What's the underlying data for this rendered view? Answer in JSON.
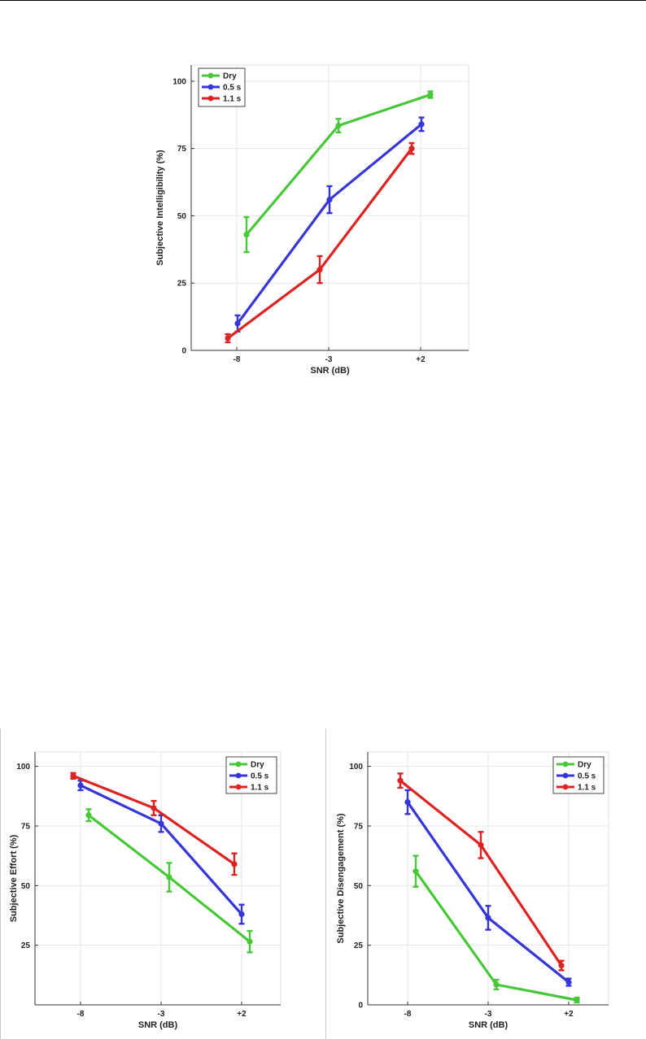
{
  "figure": {
    "series_colors": {
      "Dry": "#48c738",
      "0.5 s": "#3535d8",
      "1.1 s": "#dd2222"
    }
  },
  "chart_data": [
    {
      "type": "line",
      "xlabel": "SNR (dB)",
      "ylabel": "Subjective Intelligibility (%)",
      "categories": [
        "-8",
        "-3",
        "+2"
      ],
      "yticks": [
        "0",
        "25",
        "50",
        "75",
        "100"
      ],
      "ylim": [
        0,
        106
      ],
      "grid": true,
      "legend_position": "top-left",
      "series": [
        {
          "name": "Dry",
          "color": "#48c738",
          "values": [
            43,
            83.5,
            95
          ],
          "errors": [
            6.5,
            2.5,
            1.2
          ]
        },
        {
          "name": "0.5 s",
          "color": "#3535d8",
          "values": [
            10,
            56,
            84
          ],
          "errors": [
            3,
            5,
            2.5
          ]
        },
        {
          "name": "1.1 s",
          "color": "#dd2222",
          "values": [
            4.5,
            30,
            75
          ],
          "errors": [
            1.5,
            5,
            2
          ]
        }
      ]
    },
    {
      "type": "line",
      "xlabel": "SNR (dB)",
      "ylabel": "Subjective Effort (%)",
      "categories": [
        "-8",
        "-3",
        "+2"
      ],
      "yticks": [
        "25",
        "50",
        "75",
        "100"
      ],
      "ylim": [
        0,
        106
      ],
      "grid": true,
      "legend_position": "top-right",
      "series": [
        {
          "name": "Dry",
          "color": "#48c738",
          "values": [
            79.5,
            53.5,
            26.5
          ],
          "errors": [
            2.5,
            6,
            4.5
          ]
        },
        {
          "name": "0.5 s",
          "color": "#3535d8",
          "values": [
            92,
            76,
            38
          ],
          "errors": [
            2,
            3.5,
            4
          ]
        },
        {
          "name": "1.1 s",
          "color": "#dd2222",
          "values": [
            96,
            82.5,
            59
          ],
          "errors": [
            1.2,
            3,
            4.5
          ]
        }
      ]
    },
    {
      "type": "line",
      "xlabel": "SNR (dB)",
      "ylabel": "Subjective Disengagement (%)",
      "categories": [
        "-8",
        "-3",
        "+2"
      ],
      "yticks": [
        "0",
        "25",
        "50",
        "75",
        "100"
      ],
      "ylim": [
        0,
        106
      ],
      "grid": true,
      "legend_position": "top-right",
      "series": [
        {
          "name": "Dry",
          "color": "#48c738",
          "values": [
            56,
            8.5,
            2
          ],
          "errors": [
            6.5,
            2,
            1
          ]
        },
        {
          "name": "0.5 s",
          "color": "#3535d8",
          "values": [
            85,
            36.5,
            9.5
          ],
          "errors": [
            5,
            5,
            1.5
          ]
        },
        {
          "name": "1.1 s",
          "color": "#dd2222",
          "values": [
            94,
            67,
            16.5
          ],
          "errors": [
            3,
            5.5,
            2
          ]
        }
      ]
    }
  ]
}
